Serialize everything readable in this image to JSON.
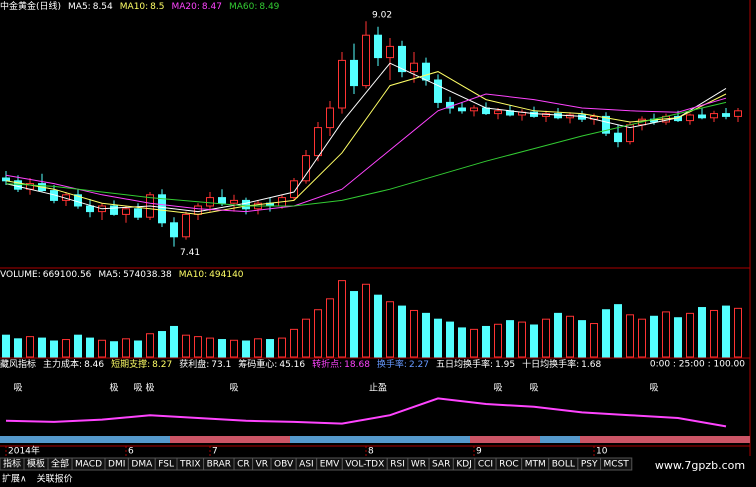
{
  "chart_data": {
    "type": "candlestick",
    "header": [
      {
        "label": "中金黄金(日线)",
        "color": "#ffffff"
      },
      {
        "label": "MA5:",
        "value": 8.54,
        "color": "#ffffff"
      },
      {
        "label": "MA10:",
        "value": 8.5,
        "color": "#ffff66"
      },
      {
        "label": "MA20:",
        "value": 8.47,
        "color": "#ff44ff"
      },
      {
        "label": "MA60:",
        "value": 8.49,
        "color": "#33cc33"
      }
    ],
    "ylim": [
      7.3,
      9.1
    ],
    "up_color": "#ff3333",
    "down_color": "#54ffff",
    "candles": [
      [
        7.9,
        7.95,
        7.85,
        7.88
      ],
      [
        7.88,
        7.92,
        7.8,
        7.82
      ],
      [
        7.82,
        7.9,
        7.78,
        7.86
      ],
      [
        7.86,
        7.93,
        7.8,
        7.81
      ],
      [
        7.81,
        7.85,
        7.72,
        7.74
      ],
      [
        7.74,
        7.8,
        7.7,
        7.78
      ],
      [
        7.78,
        7.82,
        7.68,
        7.7
      ],
      [
        7.7,
        7.75,
        7.62,
        7.66
      ],
      [
        7.66,
        7.72,
        7.6,
        7.7
      ],
      [
        7.7,
        7.74,
        7.63,
        7.64
      ],
      [
        7.64,
        7.7,
        7.58,
        7.68
      ],
      [
        7.68,
        7.72,
        7.6,
        7.62
      ],
      [
        7.62,
        7.8,
        7.6,
        7.78
      ],
      [
        7.78,
        7.82,
        7.55,
        7.58
      ],
      [
        7.58,
        7.62,
        7.41,
        7.48
      ],
      [
        7.48,
        7.66,
        7.46,
        7.64
      ],
      [
        7.64,
        7.72,
        7.6,
        7.7
      ],
      [
        7.7,
        7.8,
        7.66,
        7.76
      ],
      [
        7.76,
        7.82,
        7.7,
        7.72
      ],
      [
        7.72,
        7.78,
        7.66,
        7.74
      ],
      [
        7.74,
        7.76,
        7.64,
        7.68
      ],
      [
        7.68,
        7.74,
        7.64,
        7.72
      ],
      [
        7.72,
        7.76,
        7.66,
        7.7
      ],
      [
        7.7,
        7.78,
        7.68,
        7.76
      ],
      [
        7.76,
        7.9,
        7.74,
        7.88
      ],
      [
        7.88,
        8.1,
        7.86,
        8.06
      ],
      [
        8.06,
        8.3,
        8.02,
        8.26
      ],
      [
        8.26,
        8.45,
        8.2,
        8.4
      ],
      [
        8.4,
        8.8,
        8.36,
        8.74
      ],
      [
        8.74,
        8.86,
        8.5,
        8.56
      ],
      [
        8.56,
        9.02,
        8.54,
        8.92
      ],
      [
        8.92,
        8.98,
        8.7,
        8.76
      ],
      [
        8.76,
        8.9,
        8.6,
        8.84
      ],
      [
        8.84,
        8.88,
        8.62,
        8.66
      ],
      [
        8.66,
        8.8,
        8.58,
        8.72
      ],
      [
        8.72,
        8.76,
        8.56,
        8.6
      ],
      [
        8.6,
        8.64,
        8.4,
        8.44
      ],
      [
        8.44,
        8.48,
        8.36,
        8.4
      ],
      [
        8.4,
        8.44,
        8.36,
        8.38
      ],
      [
        8.38,
        8.42,
        8.34,
        8.4
      ],
      [
        8.4,
        8.44,
        8.35,
        8.36
      ],
      [
        8.36,
        8.4,
        8.32,
        8.38
      ],
      [
        8.38,
        8.42,
        8.34,
        8.35
      ],
      [
        8.35,
        8.39,
        8.31,
        8.37
      ],
      [
        8.37,
        8.41,
        8.33,
        8.34
      ],
      [
        8.34,
        8.38,
        8.3,
        8.36
      ],
      [
        8.36,
        8.4,
        8.32,
        8.33
      ],
      [
        8.33,
        8.37,
        8.29,
        8.35
      ],
      [
        8.35,
        8.38,
        8.3,
        8.32
      ],
      [
        8.32,
        8.36,
        8.28,
        8.34
      ],
      [
        8.34,
        8.37,
        8.2,
        8.22
      ],
      [
        8.22,
        8.28,
        8.12,
        8.16
      ],
      [
        8.16,
        8.3,
        8.14,
        8.28
      ],
      [
        8.28,
        8.34,
        8.24,
        8.32
      ],
      [
        8.32,
        8.36,
        8.28,
        8.3
      ],
      [
        8.3,
        8.36,
        8.28,
        8.34
      ],
      [
        8.34,
        8.38,
        8.3,
        8.31
      ],
      [
        8.31,
        8.36,
        8.28,
        8.35
      ],
      [
        8.35,
        8.4,
        8.32,
        8.33
      ],
      [
        8.33,
        8.38,
        8.3,
        8.36
      ],
      [
        8.36,
        8.4,
        8.32,
        8.34
      ],
      [
        8.34,
        8.4,
        8.3,
        8.38
      ]
    ],
    "ma_lines": [
      {
        "color": "#ffffff",
        "x": [
          0,
          4,
          8,
          12,
          16,
          20,
          24,
          28,
          32,
          36,
          40,
          44,
          48,
          52,
          56,
          60
        ],
        "values": [
          7.86,
          7.78,
          7.68,
          7.7,
          7.66,
          7.72,
          7.8,
          8.3,
          8.72,
          8.56,
          8.4,
          8.36,
          8.34,
          8.26,
          8.33,
          8.54
        ]
      },
      {
        "color": "#ffff66",
        "x": [
          0,
          4,
          8,
          12,
          16,
          20,
          24,
          28,
          32,
          36,
          40,
          44,
          48,
          52,
          56,
          60
        ],
        "values": [
          7.88,
          7.82,
          7.72,
          7.68,
          7.64,
          7.7,
          7.74,
          8.08,
          8.56,
          8.66,
          8.46,
          8.38,
          8.36,
          8.3,
          8.33,
          8.5
        ]
      },
      {
        "color": "#ff44ff",
        "x": [
          0,
          4,
          8,
          12,
          16,
          20,
          24,
          28,
          32,
          36,
          40,
          44,
          48,
          52,
          56,
          60
        ],
        "values": [
          7.92,
          7.86,
          7.78,
          7.72,
          7.68,
          7.66,
          7.7,
          7.82,
          8.1,
          8.38,
          8.5,
          8.46,
          8.4,
          8.38,
          8.37,
          8.47
        ]
      },
      {
        "color": "#33cc33",
        "x": [
          0,
          4,
          8,
          12,
          16,
          20,
          24,
          28,
          32,
          36,
          40,
          44,
          48,
          52,
          56,
          60
        ],
        "values": [
          7.86,
          7.84,
          7.8,
          7.76,
          7.73,
          7.7,
          7.7,
          7.74,
          7.82,
          7.92,
          8.02,
          8.11,
          8.2,
          8.28,
          8.36,
          8.44
        ]
      }
    ],
    "annotations": [
      {
        "value": 9.02,
        "index": 30,
        "at": "high"
      },
      {
        "value": 7.41,
        "index": 14,
        "at": "low"
      }
    ],
    "x_labels": [
      {
        "label": "2014年",
        "index": 0
      },
      {
        "label": "6",
        "index": 10
      },
      {
        "label": "7",
        "index": 17
      },
      {
        "label": "8",
        "index": 30
      },
      {
        "label": "9",
        "index": 39
      },
      {
        "label": "10",
        "index": 49
      }
    ]
  },
  "volume": {
    "header": [
      {
        "label": "VOLUME:",
        "value": 669100.56,
        "color": "#ffffff"
      },
      {
        "label": "MA5:",
        "value": 574038.38,
        "color": "#ffffff"
      },
      {
        "label": "MA10:",
        "value": 494140,
        "color": "#ffff66"
      }
    ],
    "ylim": [
      0,
      1100000
    ],
    "values": [
      300000,
      250000,
      280000,
      260000,
      220000,
      240000,
      300000,
      260000,
      230000,
      210000,
      250000,
      220000,
      320000,
      350000,
      420000,
      300000,
      280000,
      260000,
      240000,
      230000,
      220000,
      250000,
      240000,
      260000,
      380000,
      520000,
      650000,
      800000,
      1050000,
      900000,
      1000000,
      850000,
      760000,
      700000,
      640000,
      600000,
      520000,
      480000,
      400000,
      380000,
      420000,
      450000,
      500000,
      480000,
      440000,
      520000,
      600000,
      560000,
      500000,
      460000,
      650000,
      720000,
      580000,
      520000,
      560000,
      620000,
      540000,
      600000,
      680000,
      640000,
      700000,
      669100.56
    ]
  },
  "indicator": {
    "header": [
      {
        "label": "藏风指标",
        "color": "#ffffff"
      },
      {
        "label": "主力成本:",
        "value": 8.46,
        "color": "#ffffff"
      },
      {
        "label": "短期支撑:",
        "value": 8.27,
        "color": "#ffff66"
      },
      {
        "label": "获利盘:",
        "value": 73.1,
        "color": "#ffffff"
      },
      {
        "label": "筹码重心:",
        "value": 45.16,
        "color": "#ffffff"
      },
      {
        "label": "转折点:",
        "value": 18.68,
        "color": "#ff44ff"
      },
      {
        "label": "换手率:",
        "value": 2.27,
        "color": "#6699ff"
      },
      {
        "label": "五日均换手率:",
        "value": 1.95,
        "color": "#ffffff"
      },
      {
        "label": "十日均换手率:",
        "value": 1.68,
        "color": "#ffffff"
      }
    ],
    "time_row": "0:00 : 25:00 : 100.00",
    "ylim": [
      0,
      100
    ],
    "line_color": "#ff44ff",
    "line": {
      "x": [
        0,
        4,
        8,
        12,
        16,
        20,
        24,
        28,
        32,
        36,
        40,
        44,
        48,
        52,
        56,
        60
      ],
      "values": [
        20,
        18,
        22,
        30,
        25,
        20,
        18,
        15,
        30,
        60,
        50,
        45,
        35,
        30,
        25,
        10
      ]
    },
    "signals": [
      {
        "label": "吸",
        "index": 1,
        "color": "#33cc33"
      },
      {
        "label": "吸",
        "index": 11,
        "color": "#33cc33"
      },
      {
        "label": "吸",
        "index": 19,
        "color": "#33cc33"
      },
      {
        "label": "极",
        "index": 9,
        "color": "#ff88cc"
      },
      {
        "label": "极",
        "index": 12,
        "color": "#ff88cc"
      },
      {
        "label": "止盈",
        "index": 31,
        "color": "#33cc33"
      },
      {
        "label": "吸",
        "index": 41,
        "color": "#33cc33"
      },
      {
        "label": "吸",
        "index": 44,
        "color": "#33cc33"
      },
      {
        "label": "吸",
        "index": 54,
        "color": "#33cc33"
      }
    ]
  },
  "tabs": [
    "指标",
    "模板",
    "全部",
    "MACD",
    "DMI",
    "DMA",
    "FSL",
    "TRIX",
    "BRAR",
    "CR",
    "VR",
    "OBV",
    "ASI",
    "EMV",
    "VOL-TDX",
    "RSI",
    "WR",
    "SAR",
    "KDJ",
    "CCI",
    "ROC",
    "MTM",
    "BOLL",
    "PSY",
    "MCST"
  ],
  "footer": [
    "扩展∧",
    "关联报价"
  ],
  "watermark": "www.7gpzb.com"
}
